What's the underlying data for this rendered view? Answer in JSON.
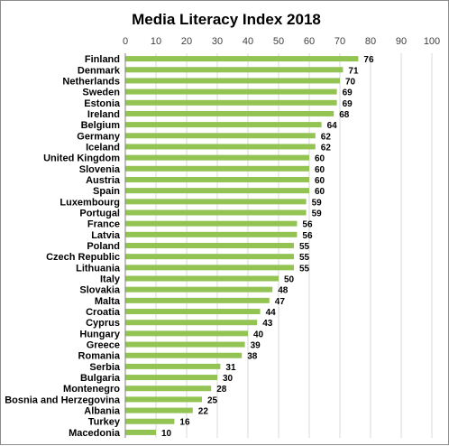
{
  "chart_data": {
    "type": "bar",
    "orientation": "horizontal",
    "title": "Media Literacy Index 2018",
    "xlabel": "",
    "ylabel": "",
    "xlim": [
      0,
      100
    ],
    "xticks": [
      0,
      10,
      20,
      30,
      40,
      50,
      60,
      70,
      80,
      90,
      100
    ],
    "x_axis_position": "top",
    "grid": true,
    "bar_color": "#92c353",
    "categories": [
      "Finland",
      "Denmark",
      "Netherlands",
      "Sweden",
      "Estonia",
      "Ireland",
      "Belgium",
      "Germany",
      "Iceland",
      "United Kingdom",
      "Slovenia",
      "Austria",
      "Spain",
      "Luxembourg",
      "Portugal",
      "France",
      "Latvia",
      "Poland",
      "Czech Republic",
      "Lithuania",
      "Italy",
      "Slovakia",
      "Malta",
      "Croatia",
      "Cyprus",
      "Hungary",
      "Greece",
      "Romania",
      "Serbia",
      "Bulgaria",
      "Montenegro",
      "Bosnia and Herzegovina",
      "Albania",
      "Turkey",
      "Macedonia"
    ],
    "values": [
      76,
      71,
      70,
      69,
      69,
      68,
      64,
      62,
      62,
      60,
      60,
      60,
      60,
      59,
      59,
      56,
      56,
      55,
      55,
      55,
      50,
      48,
      47,
      44,
      43,
      40,
      39,
      38,
      31,
      30,
      28,
      25,
      22,
      16,
      10
    ]
  }
}
